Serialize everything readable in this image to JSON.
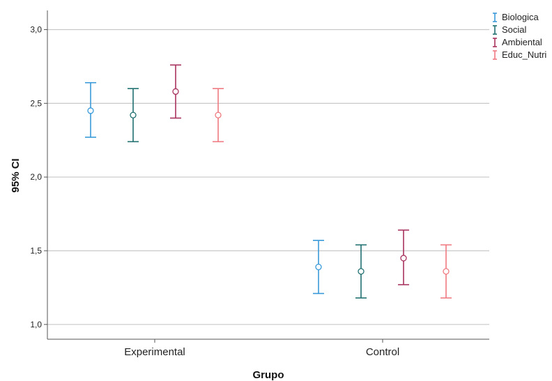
{
  "chart_data": {
    "type": "errorbar",
    "xlabel": "Grupo",
    "ylabel": "95% CI",
    "categories": [
      "Experimental",
      "Control"
    ],
    "ylim": [
      0.9,
      3.13
    ],
    "yticks": [
      1.0,
      1.5,
      2.0,
      2.5,
      3.0
    ],
    "ytick_labels": [
      "1,0",
      "1,5",
      "2,0",
      "2,5",
      "3,0"
    ],
    "grid": "horizontal",
    "legend_position": "top-right",
    "series": [
      {
        "name": "Biologica",
        "color": "#3a9ad9",
        "mean": [
          2.45,
          1.39
        ],
        "lower": [
          2.27,
          1.21
        ],
        "upper": [
          2.64,
          1.57
        ]
      },
      {
        "name": "Social",
        "color": "#1f6f6f",
        "mean": [
          2.42,
          1.36
        ],
        "lower": [
          2.24,
          1.18
        ],
        "upper": [
          2.6,
          1.54
        ]
      },
      {
        "name": "Ambiental",
        "color": "#a8325e",
        "mean": [
          2.58,
          1.45
        ],
        "lower": [
          2.4,
          1.27
        ],
        "upper": [
          2.76,
          1.64
        ]
      },
      {
        "name": "Educ_Nutri",
        "color": "#ef7a80",
        "mean": [
          2.42,
          1.36
        ],
        "lower": [
          2.24,
          1.18
        ],
        "upper": [
          2.6,
          1.54
        ]
      }
    ]
  }
}
